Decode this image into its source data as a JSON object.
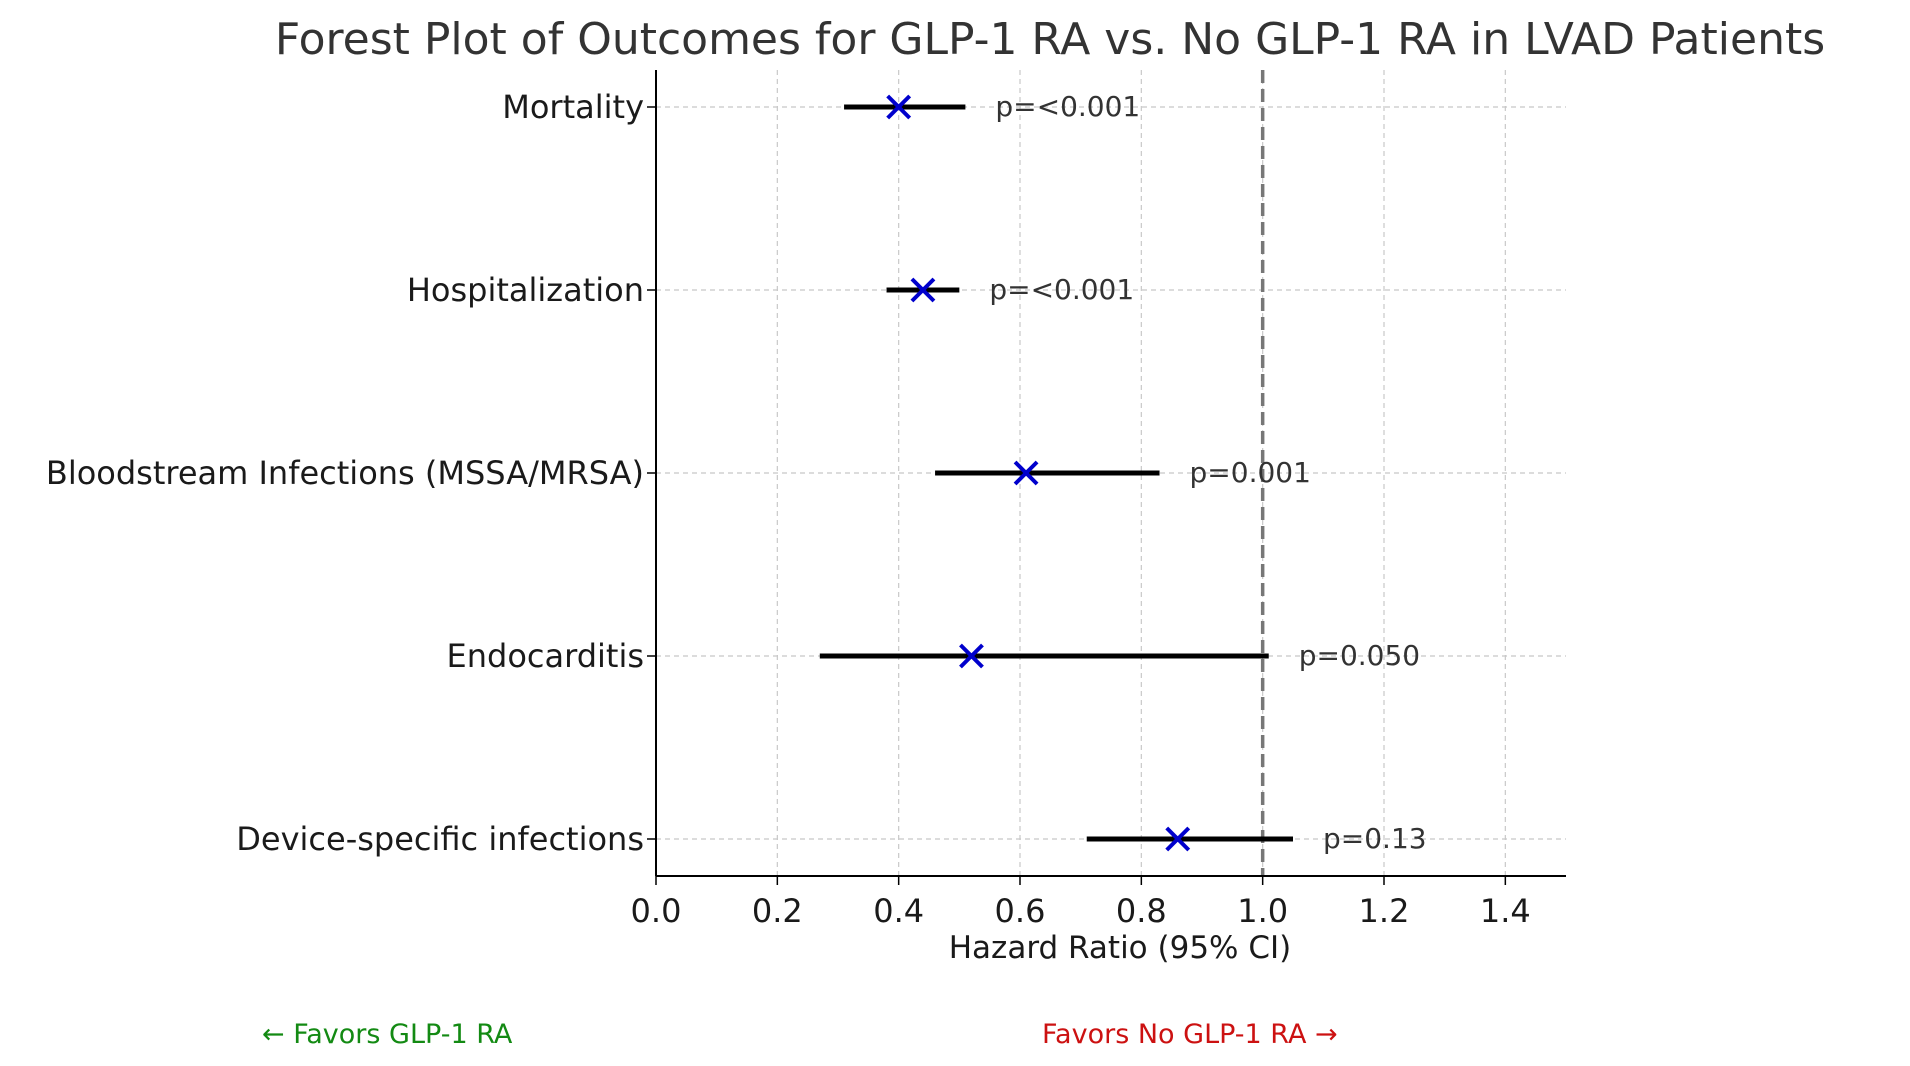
{
  "chart_data": {
    "type": "forest",
    "title": "Forest Plot of Outcomes for GLP-1 RA vs. No GLP-1 RA in LVAD Patients",
    "xlabel": "Hazard Ratio (95% CI)",
    "xlim": [
      0.0,
      1.5
    ],
    "x_ticks": [
      0.0,
      0.2,
      0.4,
      0.6,
      0.8,
      1.0,
      1.2,
      1.4
    ],
    "x_tick_labels": [
      "0.0",
      "0.2",
      "0.4",
      "0.6",
      "0.8",
      "1.0",
      "1.2",
      "1.4"
    ],
    "reference_line": 1.0,
    "grid": true,
    "rows": [
      {
        "label": "Mortality",
        "hr": 0.4,
        "ci_low": 0.31,
        "ci_high": 0.51,
        "p": "p=<0.001"
      },
      {
        "label": "Hospitalization",
        "hr": 0.44,
        "ci_low": 0.38,
        "ci_high": 0.5,
        "p": "p=<0.001"
      },
      {
        "label": "Bloodstream Infections (MSSA/MRSA)",
        "hr": 0.61,
        "ci_low": 0.46,
        "ci_high": 0.83,
        "p": "p=0.001"
      },
      {
        "label": "Endocarditis",
        "hr": 0.52,
        "ci_low": 0.27,
        "ci_high": 1.01,
        "p": "p=0.050"
      },
      {
        "label": "Device-specific infections",
        "hr": 0.86,
        "ci_low": 0.71,
        "ci_high": 1.05,
        "p": "p=0.13"
      }
    ],
    "annotations": {
      "favors_left": "← Favors GLP-1 RA",
      "favors_right": "Favors No GLP-1 RA →"
    },
    "colors": {
      "marker": "#0000cc",
      "ci_line": "#000000",
      "reference": "#777777",
      "grid": "#c8c8c8",
      "favors_left": "#138a13",
      "favors_right": "#cc1111"
    }
  }
}
